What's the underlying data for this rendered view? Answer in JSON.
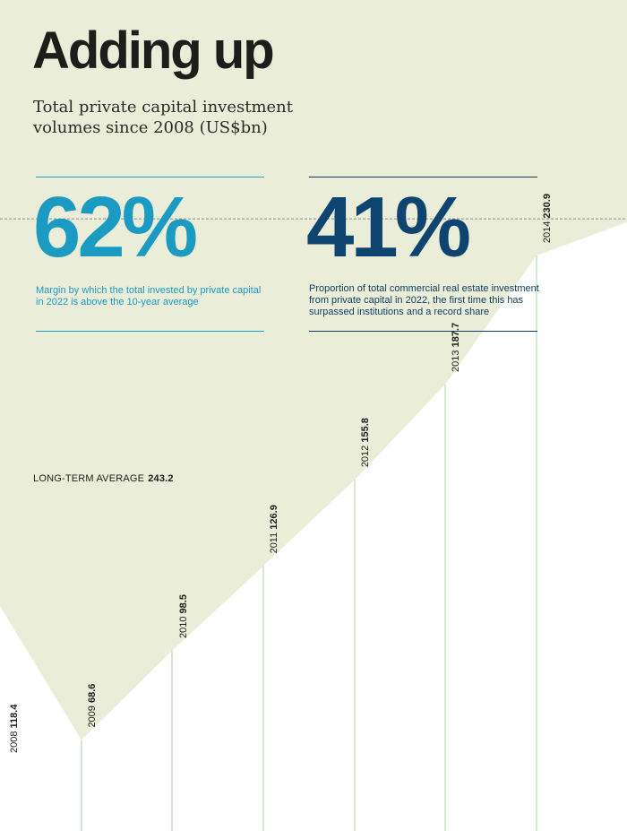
{
  "title": "Adding up",
  "subtitle": "Total private capital investment volumes since 2008 (US$bn)",
  "stats": [
    {
      "value": "62%",
      "description": "Margin by which the total invested by private capital in 2022 is above the 10-year average",
      "color": "#1b9ac2"
    },
    {
      "value": "41%",
      "description": "Proportion of total commercial real estate investment from private capital in 2022, the first time this has surpassed institutions and a record share",
      "color": "#0e4470"
    }
  ],
  "average": {
    "label": "LONG-TERM AVERAGE",
    "value": "243.2"
  },
  "colors": {
    "background": "#eaeed9",
    "chart_area": "#ffffff",
    "stems": "#a9d3a4",
    "text": "#1d1d1b"
  },
  "chart_data": {
    "type": "area",
    "title": "Total private capital investment volumes since 2008 (US$bn)",
    "x": [
      "2008",
      "2009",
      "2010",
      "2011",
      "2012",
      "2013",
      "2014"
    ],
    "values": [
      118.4,
      68.6,
      98.5,
      126.9,
      155.8,
      187.7,
      230.9
    ],
    "reference_line": {
      "label": "LONG-TERM AVERAGE",
      "value": 243.2
    },
    "xlabel": "",
    "ylabel": "US$bn"
  }
}
